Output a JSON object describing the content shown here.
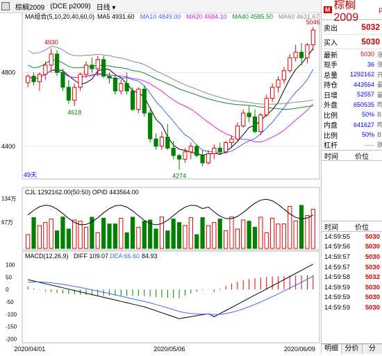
{
  "titlebar": {
    "symbol": "棕榈2009",
    "exchange": "(DCE p2009)",
    "period": "日线",
    "period_arrow": "▾"
  },
  "ma_legend": {
    "group": "MA组合(5,10,20,40,60,0)",
    "items": [
      {
        "label": "MA5 4931.60",
        "color": "#000000"
      },
      {
        "label": "MA10 4849.00",
        "color": "#3a66ff"
      },
      {
        "label": "MA20 4684.10",
        "color": "#e020e0"
      },
      {
        "label": "MA40 4585.50",
        "color": "#0a8a2a"
      },
      {
        "label": "MA60 4631.67",
        "color": "#888888"
      }
    ]
  },
  "price_axis": {
    "labels": [
      "4800",
      "4400"
    ]
  },
  "price_annotations": {
    "high": "5046",
    "hi_mid": "4930",
    "low_mid": "4618",
    "low": "4274",
    "count": "49天"
  },
  "volume": {
    "legend": "CJL  1292162.00(50:50)  OPID 443564.00",
    "axis_labels": [
      "134万",
      "67万"
    ]
  },
  "macd": {
    "legend_name": "MACD(12,26,9)",
    "diff": "DIFF 109.07",
    "dea": "DEA 66.60",
    "macd_val": "84.93",
    "axis_labels": [
      "100",
      "50",
      "0",
      "-50",
      "-100",
      "-150",
      "-200"
    ]
  },
  "dates": [
    "2020/04/01",
    "2020/05/06",
    "2020/06/09"
  ],
  "candles": [
    [
      4745,
      4790,
      4720,
      4780
    ],
    [
      4780,
      4800,
      4730,
      4750
    ],
    [
      4750,
      4800,
      4700,
      4790
    ],
    [
      4790,
      4860,
      4760,
      4840
    ],
    [
      4840,
      4930,
      4800,
      4900
    ],
    [
      4900,
      4920,
      4780,
      4800
    ],
    [
      4800,
      4820,
      4700,
      4720
    ],
    [
      4720,
      4760,
      4630,
      4650
    ],
    [
      4650,
      4740,
      4618,
      4720
    ],
    [
      4720,
      4800,
      4700,
      4790
    ],
    [
      4790,
      4860,
      4770,
      4840
    ],
    [
      4840,
      4880,
      4800,
      4820
    ],
    [
      4820,
      4890,
      4780,
      4870
    ],
    [
      4870,
      4890,
      4770,
      4780
    ],
    [
      4780,
      4800,
      4740,
      4770
    ],
    [
      4770,
      4790,
      4680,
      4700
    ],
    [
      4700,
      4760,
      4680,
      4740
    ],
    [
      4740,
      4800,
      4680,
      4700
    ],
    [
      4700,
      4720,
      4590,
      4600
    ],
    [
      4600,
      4720,
      4580,
      4710
    ],
    [
      4710,
      4730,
      4560,
      4580
    ],
    [
      4580,
      4600,
      4420,
      4440
    ],
    [
      4440,
      4470,
      4380,
      4400
    ],
    [
      4400,
      4480,
      4380,
      4450
    ],
    [
      4450,
      4520,
      4380,
      4390
    ],
    [
      4390,
      4430,
      4330,
      4350
    ],
    [
      4350,
      4360,
      4274,
      4330
    ],
    [
      4330,
      4390,
      4310,
      4370
    ],
    [
      4370,
      4420,
      4330,
      4400
    ],
    [
      4400,
      4410,
      4340,
      4350
    ],
    [
      4350,
      4380,
      4290,
      4310
    ],
    [
      4310,
      4380,
      4300,
      4360
    ],
    [
      4360,
      4410,
      4330,
      4390
    ],
    [
      4390,
      4420,
      4360,
      4370
    ],
    [
      4370,
      4430,
      4360,
      4420
    ],
    [
      4420,
      4460,
      4390,
      4440
    ],
    [
      4440,
      4530,
      4430,
      4510
    ],
    [
      4510,
      4600,
      4500,
      4580
    ],
    [
      4580,
      4620,
      4530,
      4560
    ],
    [
      4560,
      4600,
      4470,
      4480
    ],
    [
      4480,
      4580,
      4460,
      4570
    ],
    [
      4570,
      4680,
      4560,
      4660
    ],
    [
      4660,
      4740,
      4640,
      4720
    ],
    [
      4720,
      4780,
      4690,
      4760
    ],
    [
      4760,
      4830,
      4740,
      4810
    ],
    [
      4810,
      4900,
      4800,
      4880
    ],
    [
      4880,
      4950,
      4860,
      4910
    ],
    [
      4910,
      4960,
      4840,
      4880
    ],
    [
      4880,
      4960,
      4850,
      4950
    ],
    [
      4950,
      5046,
      4920,
      5030
    ]
  ],
  "right_panel": {
    "badge": "M",
    "name": "棕榈2009",
    "suffix": "p",
    "sell_label": "卖出",
    "sell_value": "5032",
    "buy_label": "买入",
    "buy_value": "5030",
    "stats": [
      {
        "label": "最新",
        "value": "5030",
        "cls": "red",
        "extra": "涨"
      },
      {
        "label": "现手",
        "value": "36",
        "cls": "blue",
        "extra": "涨"
      },
      {
        "label": "总量",
        "value": "1292162",
        "cls": "blue",
        "extra": "开"
      },
      {
        "label": "持仓",
        "value": "443564",
        "cls": "blue",
        "extra": "最"
      },
      {
        "label": "日增",
        "value": "52557",
        "cls": "blue",
        "extra": "最"
      },
      {
        "label": "外盘",
        "value": "650535",
        "cls": "blue",
        "extra": "昨"
      },
      {
        "label": "比例",
        "value": "50%",
        "cls": "blue",
        "extra": "B"
      },
      {
        "label": "内盘",
        "value": "641627",
        "cls": "blue",
        "extra": "昨"
      },
      {
        "label": "比例",
        "value": "50%",
        "cls": "blue",
        "extra": "B"
      },
      {
        "label": "杠杆",
        "value": "-----",
        "cls": "gray",
        "extra": "跌"
      }
    ],
    "th_time": "时间",
    "th_price": "价位",
    "th2_time": "时间",
    "th2_price": "价位",
    "trades": [
      {
        "time": "14:59:55",
        "price": "5030"
      },
      {
        "time": "14:59:56",
        "price": "5030"
      },
      {
        "time": "14:59:57",
        "price": "5030"
      },
      {
        "time": "14:59:57",
        "price": "5030"
      },
      {
        "time": "14:59:58",
        "price": "5032"
      },
      {
        "time": "14:59:59",
        "price": "5030"
      },
      {
        "time": "14:59:59",
        "price": "5030"
      },
      {
        "time": "14:59:59",
        "price": "5030"
      }
    ],
    "tabs": [
      "明细",
      "分价",
      "分"
    ]
  }
}
